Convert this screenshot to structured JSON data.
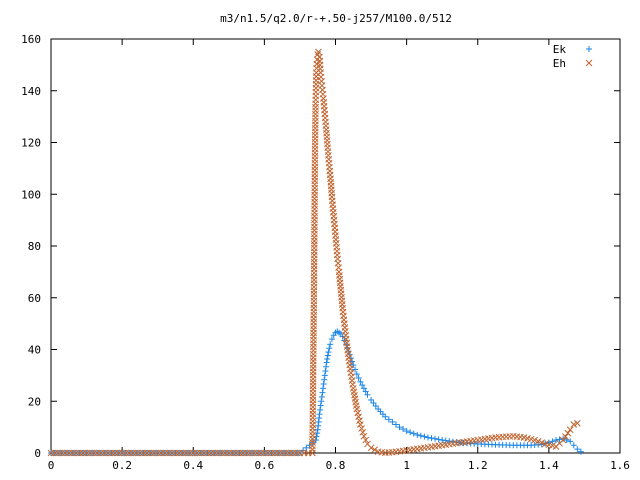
{
  "chart_data": {
    "type": "scatter",
    "title": "m3/n1.5/q2.0/r-+.50-j257/M100.0/512",
    "xlabel": "",
    "ylabel": "",
    "xlim": [
      0,
      1.6
    ],
    "ylim": [
      0,
      160
    ],
    "x_ticks": [
      "0",
      "0.2",
      "0.4",
      "0.6",
      "0.8",
      "1",
      "1.2",
      "1.4",
      "1.6"
    ],
    "y_ticks": [
      "0",
      "20",
      "40",
      "60",
      "80",
      "100",
      "120",
      "140",
      "160"
    ],
    "grid": false,
    "legend_position": "top-right",
    "series": [
      {
        "name": "Ek",
        "marker": "plus",
        "color": "#1a86e6",
        "x": [
          0.0,
          0.1,
          0.2,
          0.3,
          0.4,
          0.5,
          0.6,
          0.7,
          0.745,
          0.75,
          0.755,
          0.76,
          0.765,
          0.77,
          0.775,
          0.78,
          0.785,
          0.79,
          0.795,
          0.8,
          0.805,
          0.81,
          0.815,
          0.82,
          0.83,
          0.84,
          0.85,
          0.86,
          0.87,
          0.88,
          0.89,
          0.9,
          0.92,
          0.94,
          0.96,
          0.98,
          1.0,
          1.03,
          1.06,
          1.1,
          1.15,
          1.2,
          1.25,
          1.3,
          1.35,
          1.38,
          1.4,
          1.42,
          1.44,
          1.46,
          1.47,
          1.48,
          1.49
        ],
        "y": [
          0,
          0,
          0,
          0,
          0,
          0,
          0,
          0,
          5,
          9,
          15,
          20,
          25,
          30,
          35,
          39,
          42,
          44,
          45.5,
          46.5,
          47,
          46.5,
          46,
          45,
          42,
          38,
          34,
          30.5,
          27.5,
          25,
          22.5,
          20.5,
          17,
          14,
          12,
          10,
          8.5,
          7,
          6,
          5,
          4,
          3.5,
          3.2,
          3,
          3,
          3.3,
          4,
          5,
          5.5,
          4.5,
          3,
          1.5,
          0.5
        ]
      },
      {
        "name": "Eh",
        "marker": "cross",
        "color": "#c0632e",
        "x": [
          0.0,
          0.1,
          0.2,
          0.3,
          0.4,
          0.5,
          0.6,
          0.7,
          0.735,
          0.74,
          0.742,
          0.744,
          0.746,
          0.748,
          0.75,
          0.752,
          0.755,
          0.758,
          0.762,
          0.766,
          0.77,
          0.774,
          0.778,
          0.782,
          0.786,
          0.79,
          0.794,
          0.798,
          0.802,
          0.806,
          0.81,
          0.815,
          0.82,
          0.825,
          0.83,
          0.84,
          0.85,
          0.86,
          0.87,
          0.88,
          0.89,
          0.9,
          0.92,
          0.94,
          0.96,
          1.0,
          1.05,
          1.1,
          1.15,
          1.2,
          1.25,
          1.3,
          1.33,
          1.36,
          1.39,
          1.42,
          1.44,
          1.46,
          1.47,
          1.48
        ],
        "y": [
          0,
          0,
          0,
          0,
          0,
          0,
          0,
          0,
          0,
          71,
          112,
          135,
          147,
          152,
          154,
          155,
          153,
          147,
          142,
          137,
          131,
          125,
          118,
          112,
          106,
          99,
          93,
          87,
          81,
          75,
          70,
          63,
          56,
          50,
          44,
          34,
          25,
          17,
          11,
          6.5,
          3.5,
          2,
          0.5,
          0.1,
          0.3,
          1,
          2,
          3,
          4,
          5,
          6,
          6.5,
          6,
          5,
          3.5,
          2.5,
          5,
          9,
          11,
          11.5
        ]
      }
    ]
  }
}
